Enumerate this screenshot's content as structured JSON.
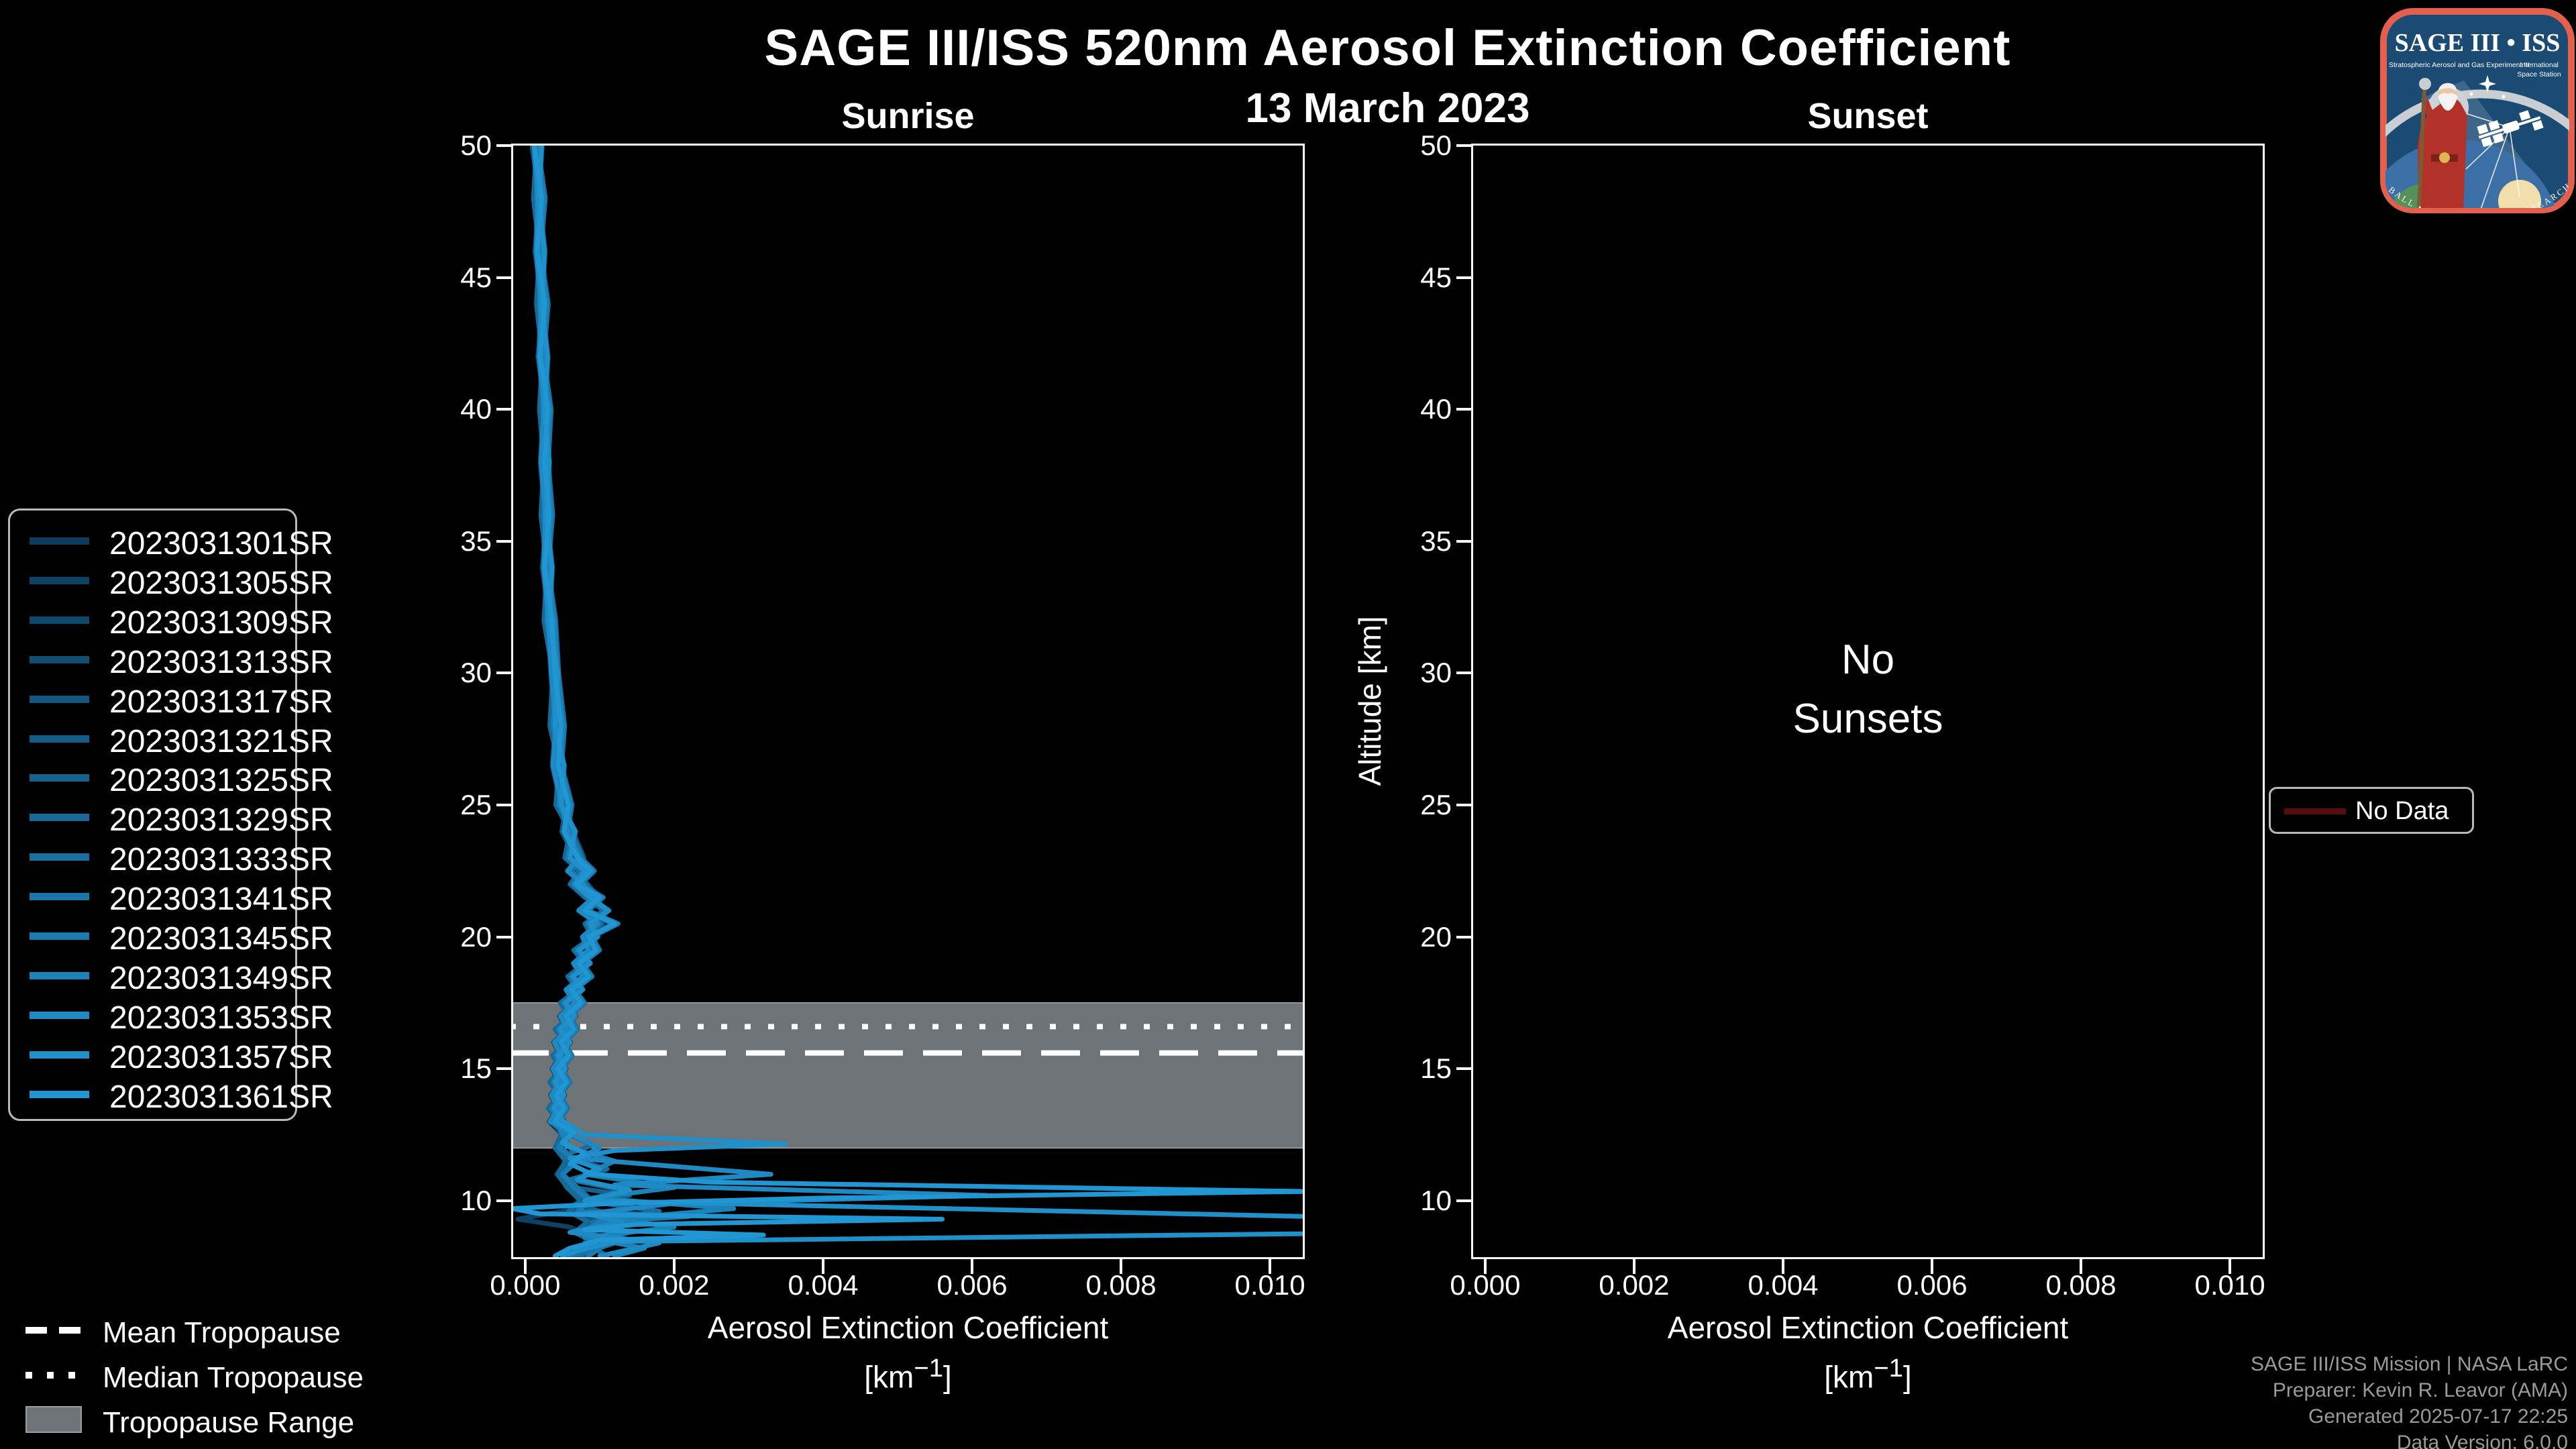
{
  "header": {
    "title": "SAGE III/ISS 520nm Aerosol Extinction Coefficient",
    "date": "13 March 2023"
  },
  "panels": {
    "sunrise_title": "Sunrise",
    "sunset_title": "Sunset",
    "no_sunsets_lines": [
      "No",
      "Sunsets"
    ]
  },
  "axes": {
    "y_label": "Altitude [km]",
    "x_label_line1": "Aerosol Extinction Coefficient",
    "x_unit_prefix": "[km",
    "x_unit_sup": "−1",
    "x_unit_suffix": "]",
    "y_ticks": [
      50,
      45,
      40,
      35,
      30,
      25,
      20,
      15,
      10
    ],
    "x_tick_labels": [
      "0.000",
      "0.002",
      "0.004",
      "0.006",
      "0.008",
      "0.010"
    ],
    "x_tick_values": [
      0,
      0.002,
      0.004,
      0.006,
      0.008,
      0.01
    ]
  },
  "tropopause_legend": {
    "mean_label": "Mean Tropopause",
    "median_label": "Median Tropopause",
    "range_label": "Tropopause Range"
  },
  "no_data_legend": {
    "label": "No Data",
    "color": "#5a0d0d"
  },
  "footer": {
    "lines": [
      "SAGE III/ISS Mission | NASA LaRC",
      "Preparer: Kevin R. Leavor (AMA)",
      "Generated 2025-07-17 22:25",
      "Data Version: 6.0.0"
    ]
  },
  "logo": {
    "title": "SAGE III • ISS",
    "subtitle_left": "Stratospheric Aerosol and Gas Experiment III",
    "subtitle_right_1": "International",
    "subtitle_right_2": "Space Station",
    "ring_text": "BALL • NASA LANGLEY RESEARCH CENTER • TAS-I • ESA",
    "border_color": "#e4604e",
    "bg_color": "#1b4b72"
  },
  "colors": {
    "background": "#000000",
    "frame": "#ffffff",
    "text": "#ffffff",
    "muted_text": "#9a9a9a",
    "band": "#6e7377",
    "band_edge": "#94989c"
  },
  "chart_data": {
    "type": "line",
    "title": "SAGE III/ISS 520nm Aerosol Extinction Coefficient",
    "subtitle": "13 March 2023",
    "xlabel": "Aerosol Extinction Coefficient [km^-1]",
    "ylabel": "Altitude [km]",
    "xlim": [
      -0.000162,
      0.010441
    ],
    "ylim": [
      7.86,
      50
    ],
    "grid": false,
    "legend_position": "center-left",
    "tropopause": {
      "mean_km": 15.6,
      "median_km": 16.6,
      "range_km": [
        12.0,
        17.5
      ]
    },
    "alt_grid": [
      50,
      48,
      46,
      44,
      42,
      40,
      38,
      36,
      34,
      32,
      30,
      28,
      26.5,
      25,
      24,
      23,
      22.5,
      22,
      21.5,
      21,
      20.5,
      20,
      19.5,
      19,
      18.5,
      18,
      17.5,
      17,
      16.5,
      16,
      15.5,
      15,
      14.5,
      14,
      13.5,
      13
    ],
    "templates": {
      "A": [
        0.00015,
        0.0002,
        0.00018,
        0.00024,
        0.00022,
        0.00028,
        0.00024,
        0.0003,
        0.00028,
        0.00034,
        0.00038,
        0.00044,
        0.0004,
        0.00052,
        0.0006,
        0.00075,
        0.0006,
        0.0008,
        0.00095,
        0.00075,
        0.001,
        0.0008,
        0.00088,
        0.00068,
        0.0008,
        0.00058,
        0.0007,
        0.0005,
        0.0006,
        0.00042,
        0.00052,
        0.0004,
        0.0005,
        0.00038,
        0.00048,
        0.00036
      ],
      "B": [
        0.0002,
        0.00016,
        0.00024,
        0.0002,
        0.00028,
        0.00024,
        0.0003,
        0.00026,
        0.00034,
        0.0003,
        0.00042,
        0.00038,
        0.0005,
        0.00046,
        0.00065,
        0.00058,
        0.00078,
        0.00065,
        0.00085,
        0.0011,
        0.00085,
        0.00095,
        0.0007,
        0.00085,
        0.00062,
        0.00075,
        0.00052,
        0.00065,
        0.00045,
        0.00058,
        0.00042,
        0.00052,
        0.00038,
        0.0005,
        0.00036,
        0.0005
      ],
      "C": [
        0.00012,
        0.00022,
        0.00016,
        0.00026,
        0.0002,
        0.0003,
        0.00026,
        0.00032,
        0.00026,
        0.00036,
        0.0004,
        0.00048,
        0.00044,
        0.00058,
        0.00052,
        0.0007,
        0.00088,
        0.0007,
        0.001,
        0.0008,
        0.0012,
        0.00085,
        0.00095,
        0.00072,
        0.00085,
        0.00062,
        0.00075,
        0.00055,
        0.00065,
        0.00048,
        0.00058,
        0.00044,
        0.00055,
        0.00042,
        0.00052,
        0.0004
      ]
    },
    "series": [
      {
        "id": "2023031301SR",
        "color": "#0d3b5c",
        "template": "A",
        "offset": -4e-05,
        "tail": [
          [
            12.5,
            0.0005
          ],
          [
            12,
            0.0004
          ],
          [
            11.5,
            0.00056
          ],
          [
            11,
            0.00044
          ],
          [
            10.5,
            0.00058
          ],
          [
            10,
            0.00078
          ],
          [
            9.6,
            0.0006
          ],
          [
            9.2,
            0.00088
          ],
          [
            8.8,
            0.00068
          ],
          [
            8.4,
            0.00098
          ],
          [
            7.9,
            0.00078
          ]
        ]
      },
      {
        "id": "2023031305SR",
        "color": "#0e4265",
        "template": "B",
        "offset": 3e-05,
        "tail": [
          [
            12.5,
            0.0005
          ],
          [
            12,
            0.0004
          ],
          [
            11.5,
            0.00055
          ],
          [
            11,
            0.00042
          ],
          [
            10.5,
            0.00058
          ],
          [
            10,
            0.00075
          ],
          [
            9.6,
            0.0005
          ],
          [
            9.3,
            -0.0001
          ],
          [
            9.0,
            0.0006
          ],
          [
            8.6,
            0.0009
          ],
          [
            7.9,
            0.0006
          ]
        ]
      },
      {
        "id": "2023031309SR",
        "color": "#10486d",
        "template": "C",
        "offset": -2e-05,
        "tail": [
          [
            12.5,
            0.00054
          ],
          [
            12,
            0.00044
          ],
          [
            11.5,
            0.0006
          ],
          [
            11,
            0.00048
          ],
          [
            10.5,
            0.00062
          ],
          [
            10,
            0.00082
          ],
          [
            9.6,
            0.00064
          ],
          [
            9.2,
            0.00092
          ],
          [
            8.8,
            0.00072
          ],
          [
            8.4,
            0.00102
          ],
          [
            7.9,
            0.00082
          ]
        ]
      },
      {
        "id": "2023031313SR",
        "color": "#114f75",
        "template": "A",
        "offset": 4e-05,
        "tail": [
          [
            12.5,
            0.00056
          ],
          [
            12,
            0.00046
          ],
          [
            11.5,
            0.00062
          ],
          [
            11,
            0.0005
          ],
          [
            10.5,
            0.00064
          ],
          [
            10,
            0.00084
          ],
          [
            9.6,
            0.00066
          ],
          [
            9.2,
            0.00094
          ],
          [
            8.8,
            0.00074
          ],
          [
            8.4,
            0.00104
          ],
          [
            7.9,
            0.00084
          ]
        ]
      },
      {
        "id": "2023031317SR",
        "color": "#12557e",
        "template": "B",
        "offset": 0,
        "tail": [
          [
            12.5,
            0.00052
          ],
          [
            12,
            0.00042
          ],
          [
            11.5,
            0.00058
          ],
          [
            11,
            0.00046
          ],
          [
            10.5,
            0.0006
          ],
          [
            10,
            0.0008
          ],
          [
            9.6,
            0.00062
          ],
          [
            9.2,
            0.0009
          ],
          [
            8.8,
            0.0007
          ],
          [
            8.4,
            0.001
          ],
          [
            7.9,
            0.0008
          ]
        ]
      },
      {
        "id": "2023031321SR",
        "color": "#145c87",
        "template": "C",
        "offset": -3e-05,
        "tail": [
          [
            12.5,
            0.0005
          ],
          [
            12,
            0.00042
          ],
          [
            11.5,
            0.00056
          ],
          [
            11,
            0.00046
          ],
          [
            10.5,
            0.00058
          ],
          [
            10,
            0.00076
          ],
          [
            9.6,
            0.0006
          ],
          [
            9.2,
            0.00086
          ],
          [
            8.8,
            0.00068
          ],
          [
            8.4,
            0.00096
          ],
          [
            7.9,
            0.00076
          ]
        ]
      },
      {
        "id": "2023031325SR",
        "color": "#15628f",
        "template": "A",
        "offset": 2e-05,
        "tail": [
          [
            12.5,
            0.00055
          ],
          [
            12,
            0.00045
          ],
          [
            11.5,
            0.0006
          ],
          [
            11,
            0.0005
          ],
          [
            10.5,
            0.00065
          ],
          [
            10.2,
            0.0014
          ],
          [
            9.9,
            0.0007
          ],
          [
            9.6,
            0.001
          ],
          [
            9.2,
            0.0016
          ],
          [
            8.8,
            0.0008
          ],
          [
            8.4,
            0.0012
          ],
          [
            7.9,
            0.0007
          ]
        ]
      },
      {
        "id": "2023031329SR",
        "color": "#176998",
        "template": "B",
        "offset": -5e-05,
        "tail": [
          [
            12.5,
            0.00048
          ],
          [
            12,
            0.0004
          ],
          [
            11.5,
            0.00054
          ],
          [
            11,
            0.00044
          ],
          [
            10.5,
            0.00056
          ],
          [
            10,
            0.00074
          ],
          [
            9.6,
            0.00058
          ],
          [
            9.2,
            0.00084
          ],
          [
            8.8,
            0.00066
          ],
          [
            8.4,
            0.00094
          ],
          [
            7.9,
            0.00074
          ]
        ]
      },
      {
        "id": "2023031333SR",
        "color": "#186fa0",
        "template": "C",
        "offset": 5e-05,
        "tail": [
          [
            12.5,
            0.0006
          ],
          [
            12.1,
            0.0009
          ],
          [
            11.7,
            0.0005
          ],
          [
            11.2,
            0.0011
          ],
          [
            10.8,
            0.0006
          ],
          [
            10.4,
            0.0013
          ],
          [
            10.0,
            0.0008
          ],
          [
            9.6,
            0.0018
          ],
          [
            9.2,
            0.0009
          ],
          [
            8.8,
            0.0014
          ],
          [
            8.4,
            0.0008
          ],
          [
            7.9,
            0.0011
          ]
        ]
      },
      {
        "id": "2023031341SR",
        "color": "#1976a8",
        "template": "A",
        "offset": 1e-05,
        "tail": [
          [
            12.5,
            0.0006
          ],
          [
            12.0,
            0.0005
          ],
          [
            11.5,
            0.00065
          ],
          [
            11.0,
            0.0005
          ],
          [
            10.5,
            0.0007
          ],
          [
            10.0,
            0.0009
          ],
          [
            9.6,
            0.0007
          ],
          [
            9.2,
            0.0016
          ],
          [
            8.8,
            0.0008
          ],
          [
            8.4,
            0.0012
          ],
          [
            7.9,
            0.0006
          ]
        ]
      },
      {
        "id": "2023031345SR",
        "color": "#1b7cb1",
        "template": "B",
        "offset": -1e-05,
        "tail": [
          [
            12.5,
            0.00055
          ],
          [
            12.0,
            0.00045
          ],
          [
            11.5,
            0.0007
          ],
          [
            11.0,
            0.0005
          ],
          [
            10.5,
            0.00065
          ],
          [
            10.0,
            0.00085
          ],
          [
            9.6,
            0.0007
          ],
          [
            9.4,
            0.0022
          ],
          [
            9.2,
            0.001
          ],
          [
            8.8,
            0.00075
          ],
          [
            8.4,
            0.0011
          ],
          [
            7.9,
            0.00085
          ]
        ]
      },
      {
        "id": "2023031349SR",
        "color": "#1c83b9",
        "template": "C",
        "offset": 3e-05,
        "tail": [
          [
            12.5,
            0.0005
          ],
          [
            12.0,
            0.0006
          ],
          [
            11.5,
            0.0012
          ],
          [
            11.0,
            0.0008
          ],
          [
            10.5,
            0.002
          ],
          [
            10.1,
            0.0009
          ],
          [
            9.7,
            0.0028
          ],
          [
            9.3,
            0.0012
          ],
          [
            9.0,
            0.002
          ],
          [
            8.6,
            0.0008
          ],
          [
            8.2,
            0.0016
          ],
          [
            7.9,
            0.0012
          ]
        ]
      },
      {
        "id": "2023031353SR",
        "color": "#1e89c2",
        "template": "A",
        "offset": -3e-05,
        "tail": [
          [
            12.4,
            0.0007
          ],
          [
            12.0,
            0.001
          ],
          [
            11.6,
            0.0007
          ],
          [
            11.0,
            0.0033
          ],
          [
            10.6,
            0.0012
          ],
          [
            10.2,
            0.0062
          ],
          [
            9.9,
            0.002
          ],
          [
            9.5,
            0.0008
          ],
          [
            9.2,
            0.0013
          ],
          [
            8.8,
            0.0006
          ],
          [
            8.4,
            0.0018
          ],
          [
            7.9,
            0.001
          ]
        ]
      },
      {
        "id": "2023031357SR",
        "color": "#1f90ca",
        "template": "B",
        "offset": 2e-05,
        "tail": [
          [
            12.5,
            0.0008
          ],
          [
            12.15,
            0.0035
          ],
          [
            11.9,
            0.0012
          ],
          [
            11.6,
            0.0006
          ],
          [
            11.2,
            0.001
          ],
          [
            10.8,
            0.0007
          ],
          [
            10.4,
            0.0014
          ],
          [
            10.0,
            0.0008
          ],
          [
            9.4,
            0.0105
          ],
          [
            8.75,
            0.0105
          ],
          [
            8.45,
            0.0012
          ],
          [
            8.1,
            0.0007
          ],
          [
            7.9,
            0.0005
          ]
        ]
      },
      {
        "id": "2023031361SR",
        "color": "#2096d3",
        "template": "C",
        "offset": 0,
        "tail": [
          [
            12.6,
            0.00065
          ],
          [
            12.2,
            0.0005
          ],
          [
            11.8,
            0.0008
          ],
          [
            11.4,
            0.0006
          ],
          [
            11.0,
            0.0009
          ],
          [
            10.7,
            0.0025
          ],
          [
            10.35,
            0.0105
          ],
          [
            10.1,
            0.004
          ],
          [
            9.9,
            0.0012
          ],
          [
            9.7,
            -0.00018
          ],
          [
            9.5,
            0.0002
          ],
          [
            9.3,
            0.0056
          ],
          [
            9.1,
            0.0015
          ],
          [
            8.9,
            0.0008
          ],
          [
            8.7,
            0.0032
          ],
          [
            8.5,
            0.001
          ],
          [
            8.2,
            0.0006
          ],
          [
            7.9,
            0.0004
          ]
        ]
      }
    ]
  }
}
